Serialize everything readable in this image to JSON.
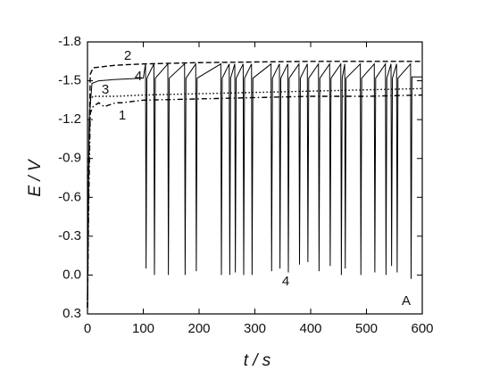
{
  "chart_data": {
    "type": "line",
    "xlabel": "t / s",
    "ylabel": "E / V",
    "xlim": [
      0,
      600
    ],
    "xticks": [
      0,
      100,
      200,
      300,
      400,
      500,
      600
    ],
    "ylim": [
      -1.8,
      0.3
    ],
    "yticks": [
      -1.8,
      -1.5,
      -1.2,
      -0.9,
      -0.6,
      -0.3,
      {
        "value": 0,
        "label": "0.0"
      },
      0.3
    ],
    "series": [
      {
        "name": "1",
        "color": "#000000",
        "style": "dash-dot",
        "x": [
          0,
          2,
          5,
          10,
          20,
          30,
          50,
          60,
          100,
          200,
          300,
          400,
          500,
          600
        ],
        "values": [
          0.25,
          -0.5,
          -1.25,
          -1.3,
          -1.33,
          -1.3,
          -1.33,
          -1.33,
          -1.35,
          -1.36,
          -1.37,
          -1.38,
          -1.38,
          -1.39
        ]
      },
      {
        "name": "2",
        "color": "#000000",
        "style": "dashed",
        "x": [
          0,
          2,
          5,
          10,
          50,
          100,
          200,
          300,
          400,
          500,
          600
        ],
        "values": [
          0.25,
          -0.8,
          -1.55,
          -1.6,
          -1.62,
          -1.63,
          -1.64,
          -1.645,
          -1.65,
          -1.65,
          -1.65
        ]
      },
      {
        "name": "3",
        "color": "#000000",
        "style": "dotted",
        "x": [
          0,
          2,
          5,
          10,
          50,
          100,
          200,
          300,
          400,
          500,
          600
        ],
        "values": [
          0.25,
          -0.7,
          -1.35,
          -1.38,
          -1.38,
          -1.39,
          -1.4,
          -1.41,
          -1.42,
          -1.43,
          -1.44
        ]
      },
      {
        "name": "4",
        "color": "#000000",
        "style": "solid",
        "x": [
          0,
          3,
          8,
          20,
          50,
          100,
          104,
          105,
          106.5,
          119,
          120,
          121.5,
          144,
          145,
          146.5,
          174,
          175,
          176.5,
          194,
          195,
          196.5,
          239,
          240,
          241.5,
          254,
          255,
          256.5,
          264,
          265,
          266.5,
          279,
          280,
          281.5,
          294,
          295,
          296.5,
          329,
          330,
          331.5,
          344,
          345,
          346.5,
          359,
          360,
          361.5,
          379,
          380,
          381.5,
          394,
          395,
          396.5,
          414,
          415,
          416.5,
          434,
          435,
          436.5,
          454,
          455,
          456.5,
          461,
          462,
          463.5,
          489,
          490,
          491.5,
          514,
          515,
          516.5,
          534,
          535,
          536.5,
          544,
          545,
          546.5,
          554,
          555,
          556.5,
          579,
          580,
          581.5,
          600
        ],
        "values": [
          0.25,
          -1.2,
          -1.48,
          -1.5,
          -1.51,
          -1.52,
          -1.63,
          -0.05,
          -1.52,
          -1.63,
          0.0,
          -1.52,
          -1.63,
          0.0,
          -1.52,
          -1.63,
          0.0,
          -1.52,
          -1.63,
          -0.03,
          -1.52,
          -1.63,
          0.0,
          -1.52,
          -1.63,
          0.0,
          -1.52,
          -1.63,
          -0.02,
          -1.52,
          -1.63,
          0.0,
          -1.52,
          -1.63,
          0.0,
          -1.52,
          -1.63,
          -0.03,
          -1.52,
          -1.63,
          -0.05,
          -1.52,
          -1.63,
          -0.02,
          -1.52,
          -1.63,
          -0.08,
          -1.52,
          -1.63,
          -0.1,
          -1.52,
          -1.63,
          -0.03,
          -1.52,
          -1.63,
          -0.07,
          -1.52,
          -1.63,
          0.0,
          -1.52,
          -1.63,
          -0.05,
          -1.52,
          -1.63,
          0.0,
          -1.52,
          -1.63,
          -0.02,
          -1.52,
          -1.63,
          0.0,
          -1.52,
          -1.63,
          -0.07,
          -1.52,
          -1.63,
          -0.02,
          -1.52,
          -1.63,
          0.03,
          -1.53,
          -1.53
        ]
      }
    ],
    "annotations": [
      "4",
      "A"
    ]
  }
}
